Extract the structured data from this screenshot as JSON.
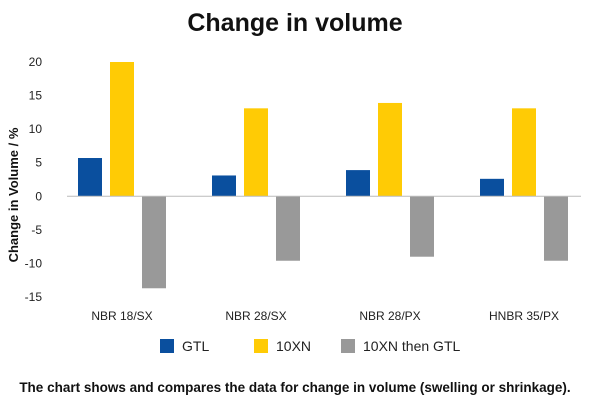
{
  "chart_data": {
    "type": "bar",
    "title": "Change in volume",
    "ylabel": "Change in Volume / %",
    "xlabel": "",
    "categories": [
      "NBR 18/SX",
      "NBR 28/SX",
      "NBR 28/PX",
      "HNBR 35/PX"
    ],
    "series": [
      {
        "name": "GTL",
        "color": "#0a4f9e",
        "values": [
          5.7,
          3.1,
          3.9,
          2.6
        ]
      },
      {
        "name": "10XN",
        "color": "#ffcb05",
        "values": [
          20.0,
          13.1,
          13.9,
          13.1
        ]
      },
      {
        "name": "10XN then GTL",
        "color": "#999999",
        "values": [
          -13.7,
          -9.6,
          -9.0,
          -9.6
        ]
      }
    ],
    "ylim": [
      -15,
      20
    ],
    "yticks": [
      20,
      15,
      10,
      5,
      0,
      -5,
      -10,
      -15
    ],
    "legend_position": "bottom",
    "grid": false
  },
  "caption": "The chart shows and compares the data for change in volume (swelling or shrinkage)."
}
